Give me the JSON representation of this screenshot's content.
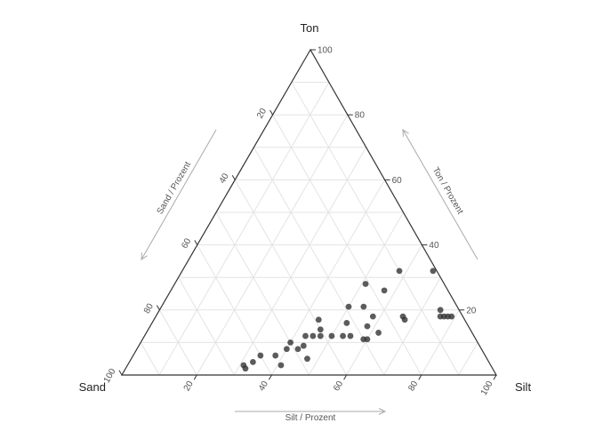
{
  "chart_data": {
    "type": "scatter",
    "subtype": "ternary",
    "axes": {
      "top": {
        "label": "Ton",
        "title": "Ton / Prozent"
      },
      "left": {
        "label": "Sand",
        "title": "Sand / Prozent"
      },
      "right": {
        "label": "Silt",
        "title": "Silt / Prozent"
      }
    },
    "ticks": [
      "20",
      "40",
      "60",
      "80",
      "100"
    ],
    "grid": true,
    "point_color": "#333333",
    "points": [
      {
        "sand": 66,
        "silt": 31,
        "ton": 3
      },
      {
        "sand": 66,
        "silt": 32,
        "ton": 2
      },
      {
        "sand": 63,
        "silt": 33,
        "ton": 4
      },
      {
        "sand": 60,
        "silt": 34,
        "ton": 6
      },
      {
        "sand": 56,
        "silt": 41,
        "ton": 3
      },
      {
        "sand": 56,
        "silt": 38,
        "ton": 6
      },
      {
        "sand": 52,
        "silt": 40,
        "ton": 8
      },
      {
        "sand": 50,
        "silt": 40,
        "ton": 10
      },
      {
        "sand": 49,
        "silt": 43,
        "ton": 8
      },
      {
        "sand": 48,
        "silt": 47,
        "ton": 5
      },
      {
        "sand": 47,
        "silt": 44,
        "ton": 9
      },
      {
        "sand": 45,
        "silt": 43,
        "ton": 12
      },
      {
        "sand": 43,
        "silt": 45,
        "ton": 12
      },
      {
        "sand": 41,
        "silt": 47,
        "ton": 12
      },
      {
        "sand": 39,
        "silt": 44,
        "ton": 17
      },
      {
        "sand": 40,
        "silt": 46,
        "ton": 14
      },
      {
        "sand": 38,
        "silt": 50,
        "ton": 12
      },
      {
        "sand": 35,
        "silt": 53,
        "ton": 12
      },
      {
        "sand": 33,
        "silt": 55,
        "ton": 12
      },
      {
        "sand": 32,
        "silt": 52,
        "ton": 16
      },
      {
        "sand": 30,
        "silt": 59,
        "ton": 11
      },
      {
        "sand": 29,
        "silt": 60,
        "ton": 11
      },
      {
        "sand": 29,
        "silt": 50,
        "ton": 21
      },
      {
        "sand": 27,
        "silt": 58,
        "ton": 15
      },
      {
        "sand": 25,
        "silt": 62,
        "ton": 13
      },
      {
        "sand": 25,
        "silt": 54,
        "ton": 21
      },
      {
        "sand": 24,
        "silt": 58,
        "ton": 18
      },
      {
        "sand": 21,
        "silt": 51,
        "ton": 28
      },
      {
        "sand": 17,
        "silt": 57,
        "ton": 26
      },
      {
        "sand": 16,
        "silt": 66,
        "ton": 18
      },
      {
        "sand": 16,
        "silt": 67,
        "ton": 17
      },
      {
        "sand": 10,
        "silt": 58,
        "ton": 32
      },
      {
        "sand": 6,
        "silt": 76,
        "ton": 18
      },
      {
        "sand": 5,
        "silt": 75,
        "ton": 20
      },
      {
        "sand": 5,
        "silt": 77,
        "ton": 18
      },
      {
        "sand": 4,
        "silt": 78,
        "ton": 18
      },
      {
        "sand": 3,
        "silt": 79,
        "ton": 18
      },
      {
        "sand": 1,
        "silt": 67,
        "ton": 32
      }
    ]
  }
}
